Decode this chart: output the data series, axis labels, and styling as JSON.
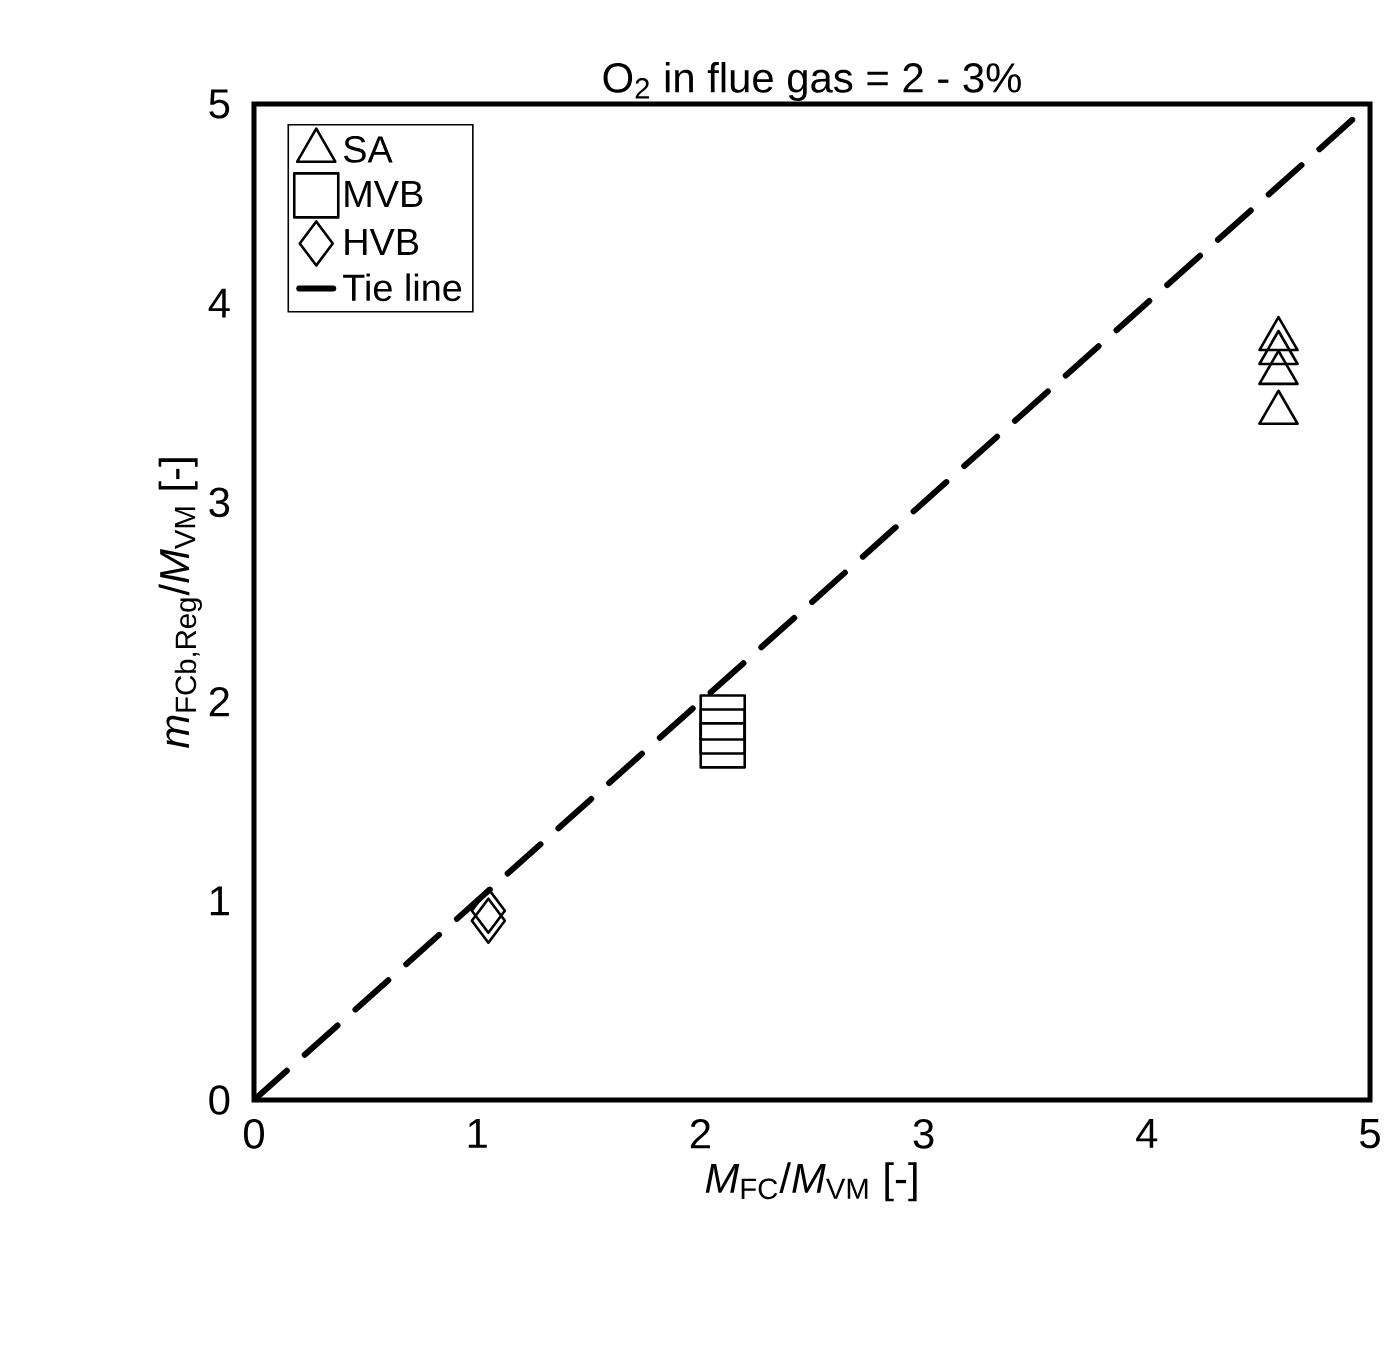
{
  "chart_data": {
    "type": "scatter",
    "title": "O$_{2}$ in  flue gas = 2 - 3%",
    "xlabel": "*M*$_{FC}$/*M*$_{VM}$ [-]",
    "ylabel": "*m*$_{FCb,Reg}$/*M*$_{VM}$ [-]",
    "xlim": [
      0,
      5
    ],
    "ylim": [
      0,
      5
    ],
    "xticks": [
      0,
      1,
      2,
      3,
      4,
      5
    ],
    "yticks": [
      0,
      1,
      2,
      3,
      4,
      5
    ],
    "legend": "top left",
    "grid": false,
    "series": [
      {
        "name": "SA",
        "color": "#000000",
        "marker": "triangle",
        "x": [
          4.59,
          4.59,
          4.59,
          4.59
        ],
        "values": [
          3.82,
          3.75,
          3.65,
          3.45
        ]
      },
      {
        "name": "MVB",
        "color": "#000000",
        "marker": "square",
        "x": [
          2.1,
          2.1,
          2.1
        ],
        "values": [
          1.78,
          1.85,
          1.92
        ]
      },
      {
        "name": "HVB",
        "color": "#000000",
        "marker": "diamond",
        "x": [
          1.05,
          1.05
        ],
        "values": [
          0.9,
          0.95
        ]
      },
      {
        "name": "Tie line",
        "type": "line",
        "color": "#000000",
        "marker": "none",
        "line_style": "dashed",
        "x": [
          0,
          5
        ],
        "values": [
          0,
          5
        ]
      }
    ]
  }
}
